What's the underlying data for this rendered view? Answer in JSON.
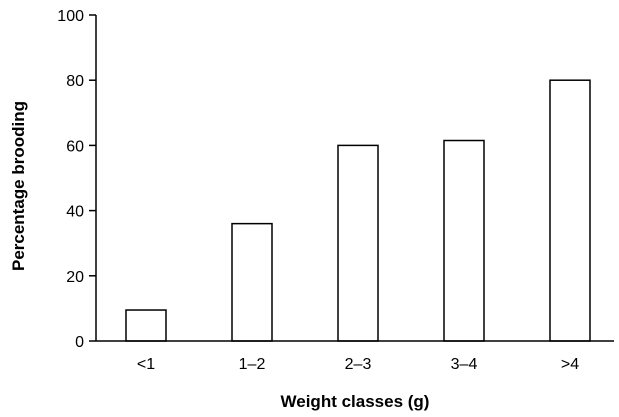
{
  "chart_data": {
    "type": "bar",
    "title": "",
    "xlabel": "Weight classes (g)",
    "ylabel": "Percentage brooding",
    "categories": [
      "<1",
      "1–2",
      "2–3",
      "3–4",
      ">4"
    ],
    "values": [
      9.5,
      36,
      60,
      61.5,
      80
    ],
    "ylim": [
      0,
      100
    ],
    "yticks": [
      "0",
      "20",
      "40",
      "60",
      "80",
      "100"
    ],
    "grid": false,
    "legend": "none",
    "bar_fill": "#ffffff",
    "bar_stroke": "#000000"
  }
}
